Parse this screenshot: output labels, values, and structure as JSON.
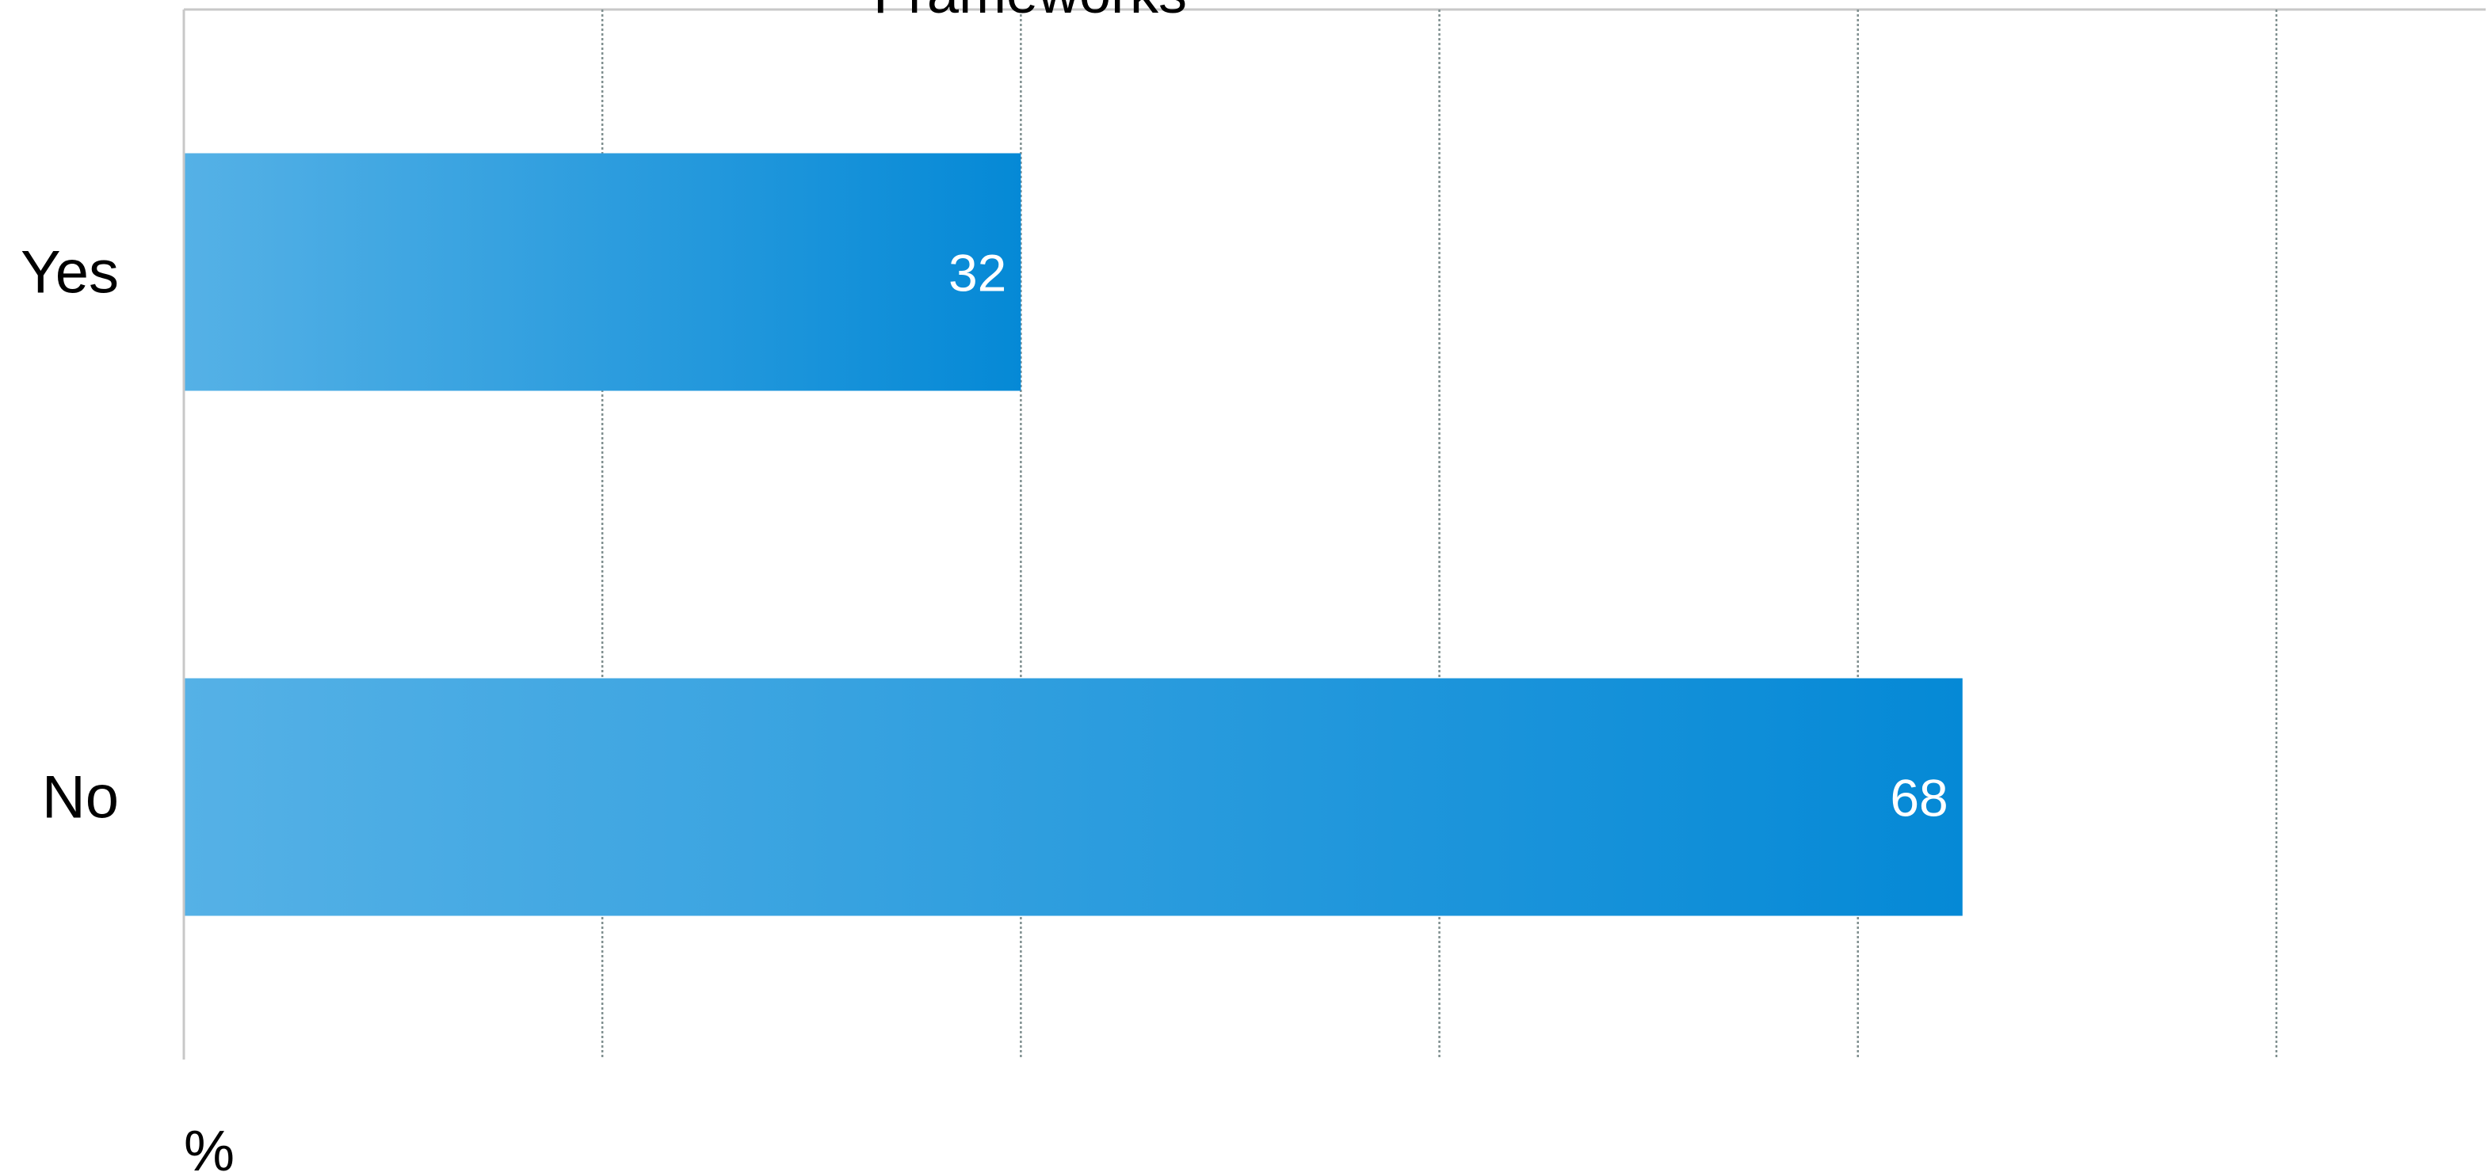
{
  "chart_data": {
    "type": "bar",
    "orientation": "horizontal",
    "title": "Frameworks",
    "categories": [
      "Yes",
      "No"
    ],
    "values": [
      32,
      68
    ],
    "value_labels": [
      "32",
      "68"
    ],
    "xlabel": "%",
    "xlim": [
      0,
      88
    ],
    "x_gridline_step": 16,
    "grid": true,
    "grid_style": "vertical dotted",
    "legend": "none",
    "bar_color_start": "#55b1e6",
    "bar_color_end": "#0589d6",
    "value_label_color": "#ffffff",
    "axis_color": "#c8c8c8",
    "grid_color": "#7f8f8f",
    "text_color": "#000000"
  }
}
